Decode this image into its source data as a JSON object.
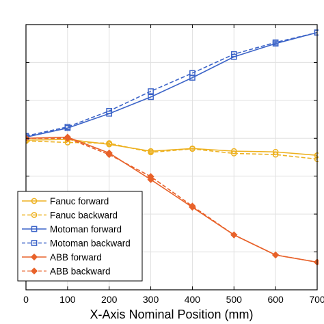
{
  "chart_data": {
    "type": "line",
    "xlabel": "X-Axis Nominal Position (mm)",
    "ylabel": "",
    "xlim": [
      0,
      700
    ],
    "ylim": [
      -0.4,
      0.3
    ],
    "x_ticks": [
      "0",
      "100",
      "200",
      "300",
      "400",
      "500",
      "600",
      "700"
    ],
    "x_tick_values": [
      0,
      100,
      200,
      300,
      400,
      500,
      600,
      700
    ],
    "y_tick_values": [
      -0.4,
      -0.3,
      -0.2,
      -0.1,
      0,
      0.1,
      0.2,
      0.3
    ],
    "grid": true,
    "legend_position": "bottom-left",
    "x": [
      0,
      100,
      200,
      300,
      400,
      500,
      600,
      700
    ],
    "series": [
      {
        "name": "Fanuc forward",
        "color": "#EDB120",
        "dash": false,
        "marker": "circle",
        "values": [
          -0.005,
          -0.003,
          -0.016,
          -0.034,
          -0.027,
          -0.034,
          -0.036,
          -0.045
        ]
      },
      {
        "name": "Fanuc backward",
        "color": "#EDB120",
        "dash": true,
        "marker": "circle",
        "values": [
          -0.007,
          -0.011,
          -0.013,
          -0.037,
          -0.028,
          -0.04,
          -0.043,
          -0.055
        ]
      },
      {
        "name": "Motoman forward",
        "color": "#3C64C8",
        "dash": false,
        "marker": "square",
        "values": [
          0.003,
          0.027,
          0.065,
          0.109,
          0.16,
          0.215,
          0.25,
          0.279
        ]
      },
      {
        "name": "Motoman backward",
        "color": "#3C64C8",
        "dash": true,
        "marker": "square",
        "values": [
          0.006,
          0.03,
          0.072,
          0.124,
          0.172,
          0.222,
          0.253,
          0.279
        ]
      },
      {
        "name": "ABB forward",
        "color": "#E8622A",
        "dash": false,
        "marker": "diamond",
        "values": [
          0.0,
          0.003,
          -0.039,
          -0.109,
          -0.182,
          -0.255,
          -0.308,
          -0.327
        ]
      },
      {
        "name": "ABB backward",
        "color": "#E8622A",
        "dash": true,
        "marker": "diamond",
        "values": [
          0.0,
          0.0,
          -0.043,
          -0.101,
          -0.179,
          -0.255,
          -0.308,
          -0.327
        ]
      }
    ]
  }
}
